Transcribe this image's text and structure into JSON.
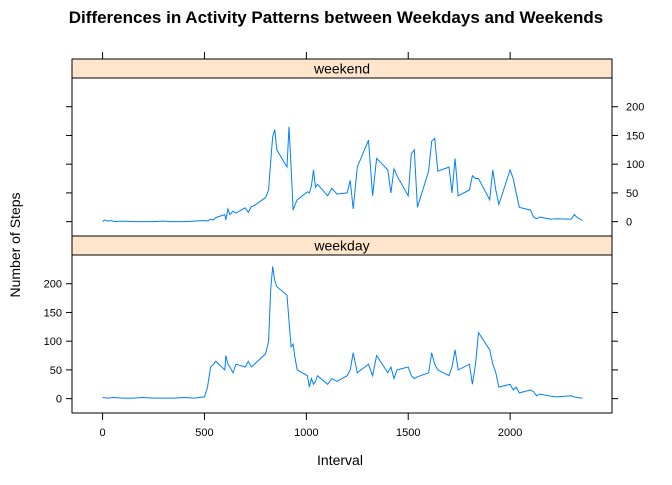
{
  "chart_data": {
    "type": "line",
    "title": "Differences in Activity Patterns between Weekdays and Weekends",
    "xlabel": "Interval",
    "ylabel": "Number of Steps",
    "xlim": [
      -150,
      2500
    ],
    "ylim": [
      -25,
      250
    ],
    "x_ticks": [
      0,
      500,
      1000,
      1500,
      2000
    ],
    "y_ticks": [
      0,
      50,
      100,
      150,
      200
    ],
    "grid": false,
    "legend": "none",
    "line_color": "#0080ff",
    "strip_color": "#ffe5cc",
    "series": [
      {
        "name": "weekend",
        "points": [
          [
            0,
            0
          ],
          [
            10,
            3
          ],
          [
            25,
            1
          ],
          [
            40,
            2
          ],
          [
            60,
            0
          ],
          [
            100,
            1
          ],
          [
            150,
            0
          ],
          [
            200,
            0
          ],
          [
            250,
            0
          ],
          [
            300,
            1
          ],
          [
            330,
            0
          ],
          [
            350,
            0
          ],
          [
            400,
            0
          ],
          [
            450,
            1
          ],
          [
            500,
            2
          ],
          [
            515,
            1
          ],
          [
            530,
            4
          ],
          [
            545,
            3
          ],
          [
            555,
            7
          ],
          [
            600,
            12
          ],
          [
            605,
            3
          ],
          [
            615,
            22
          ],
          [
            625,
            12
          ],
          [
            640,
            18
          ],
          [
            655,
            15
          ],
          [
            700,
            24
          ],
          [
            715,
            16
          ],
          [
            730,
            26
          ],
          [
            745,
            28
          ],
          [
            800,
            42
          ],
          [
            815,
            55
          ],
          [
            825,
            105
          ],
          [
            835,
            148
          ],
          [
            845,
            160
          ],
          [
            855,
            125
          ],
          [
            905,
            95
          ],
          [
            915,
            165
          ],
          [
            925,
            95
          ],
          [
            935,
            20
          ],
          [
            945,
            30
          ],
          [
            955,
            38
          ],
          [
            1005,
            52
          ],
          [
            1015,
            50
          ],
          [
            1025,
            62
          ],
          [
            1035,
            90
          ],
          [
            1045,
            60
          ],
          [
            1055,
            65
          ],
          [
            1105,
            45
          ],
          [
            1125,
            58
          ],
          [
            1150,
            48
          ],
          [
            1200,
            50
          ],
          [
            1215,
            72
          ],
          [
            1230,
            22
          ],
          [
            1250,
            95
          ],
          [
            1305,
            142
          ],
          [
            1325,
            45
          ],
          [
            1345,
            110
          ],
          [
            1400,
            90
          ],
          [
            1415,
            50
          ],
          [
            1430,
            92
          ],
          [
            1445,
            80
          ],
          [
            1500,
            45
          ],
          [
            1515,
            118
          ],
          [
            1530,
            125
          ],
          [
            1545,
            25
          ],
          [
            1600,
            88
          ],
          [
            1615,
            140
          ],
          [
            1630,
            145
          ],
          [
            1645,
            88
          ],
          [
            1700,
            95
          ],
          [
            1715,
            50
          ],
          [
            1730,
            110
          ],
          [
            1745,
            45
          ],
          [
            1800,
            55
          ],
          [
            1815,
            80
          ],
          [
            1830,
            75
          ],
          [
            1845,
            75
          ],
          [
            1900,
            38
          ],
          [
            1915,
            90
          ],
          [
            1930,
            55
          ],
          [
            1945,
            30
          ],
          [
            2000,
            90
          ],
          [
            2015,
            75
          ],
          [
            2030,
            50
          ],
          [
            2045,
            25
          ],
          [
            2100,
            20
          ],
          [
            2115,
            8
          ],
          [
            2130,
            5
          ],
          [
            2145,
            8
          ],
          [
            2200,
            4
          ],
          [
            2230,
            5
          ],
          [
            2300,
            4
          ],
          [
            2315,
            12
          ],
          [
            2330,
            7
          ],
          [
            2355,
            2
          ]
        ]
      },
      {
        "name": "weekday",
        "points": [
          [
            0,
            2
          ],
          [
            25,
            1
          ],
          [
            50,
            2
          ],
          [
            100,
            1
          ],
          [
            150,
            1
          ],
          [
            200,
            2
          ],
          [
            250,
            1
          ],
          [
            300,
            1
          ],
          [
            350,
            1
          ],
          [
            400,
            2
          ],
          [
            450,
            1
          ],
          [
            500,
            3
          ],
          [
            515,
            20
          ],
          [
            530,
            55
          ],
          [
            545,
            60
          ],
          [
            555,
            65
          ],
          [
            600,
            50
          ],
          [
            605,
            75
          ],
          [
            615,
            60
          ],
          [
            625,
            55
          ],
          [
            640,
            45
          ],
          [
            655,
            60
          ],
          [
            700,
            55
          ],
          [
            715,
            65
          ],
          [
            730,
            55
          ],
          [
            745,
            60
          ],
          [
            800,
            78
          ],
          [
            815,
            100
          ],
          [
            825,
            190
          ],
          [
            835,
            230
          ],
          [
            845,
            205
          ],
          [
            855,
            195
          ],
          [
            905,
            180
          ],
          [
            915,
            135
          ],
          [
            925,
            90
          ],
          [
            935,
            95
          ],
          [
            945,
            70
          ],
          [
            955,
            50
          ],
          [
            1005,
            40
          ],
          [
            1015,
            20
          ],
          [
            1025,
            35
          ],
          [
            1035,
            25
          ],
          [
            1045,
            30
          ],
          [
            1055,
            40
          ],
          [
            1105,
            25
          ],
          [
            1125,
            35
          ],
          [
            1150,
            30
          ],
          [
            1200,
            40
          ],
          [
            1215,
            50
          ],
          [
            1230,
            80
          ],
          [
            1250,
            45
          ],
          [
            1305,
            60
          ],
          [
            1325,
            40
          ],
          [
            1345,
            75
          ],
          [
            1400,
            45
          ],
          [
            1415,
            55
          ],
          [
            1430,
            35
          ],
          [
            1445,
            50
          ],
          [
            1500,
            55
          ],
          [
            1515,
            40
          ],
          [
            1530,
            35
          ],
          [
            1545,
            38
          ],
          [
            1600,
            45
          ],
          [
            1615,
            80
          ],
          [
            1630,
            60
          ],
          [
            1645,
            50
          ],
          [
            1700,
            40
          ],
          [
            1715,
            55
          ],
          [
            1730,
            85
          ],
          [
            1745,
            50
          ],
          [
            1800,
            60
          ],
          [
            1815,
            25
          ],
          [
            1830,
            60
          ],
          [
            1845,
            115
          ],
          [
            1900,
            85
          ],
          [
            1915,
            60
          ],
          [
            1930,
            45
          ],
          [
            1945,
            20
          ],
          [
            2000,
            25
          ],
          [
            2015,
            15
          ],
          [
            2030,
            20
          ],
          [
            2045,
            10
          ],
          [
            2100,
            15
          ],
          [
            2115,
            12
          ],
          [
            2130,
            5
          ],
          [
            2145,
            8
          ],
          [
            2200,
            4
          ],
          [
            2230,
            3
          ],
          [
            2300,
            5
          ],
          [
            2315,
            3
          ],
          [
            2330,
            2
          ],
          [
            2355,
            1
          ]
        ]
      }
    ]
  }
}
